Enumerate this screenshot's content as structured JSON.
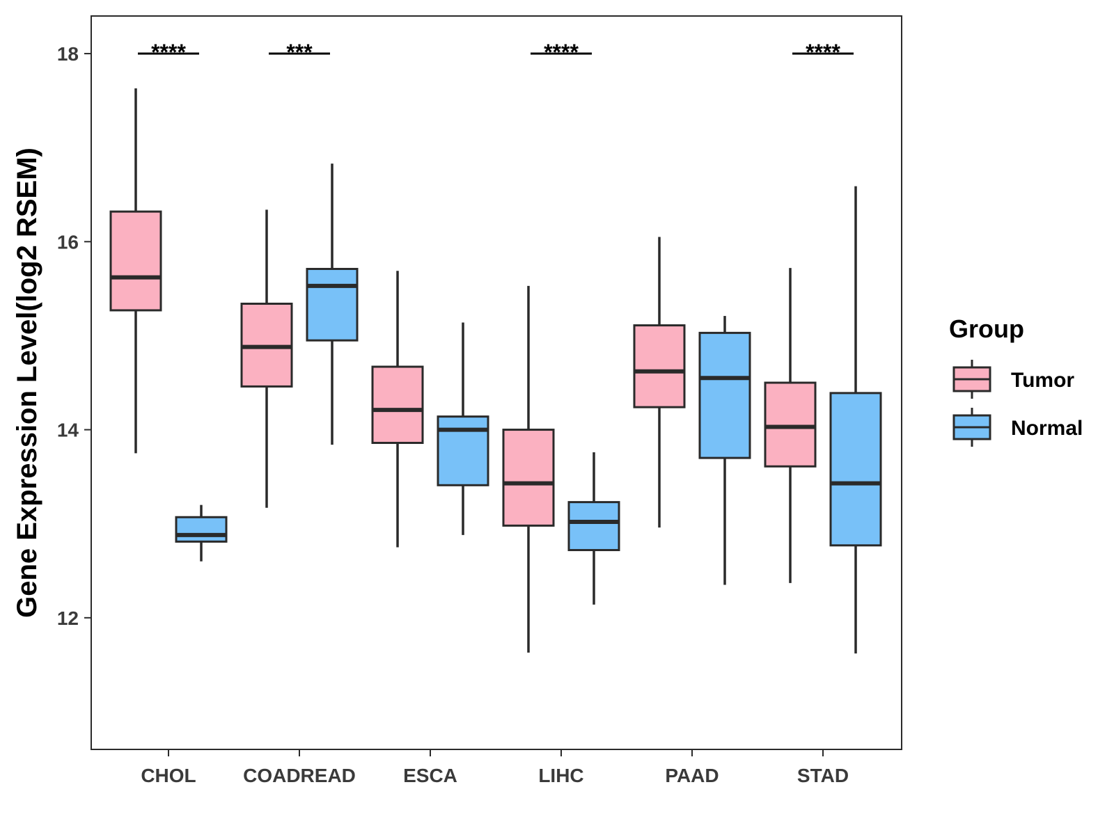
{
  "chart_data": {
    "type": "box",
    "ylabel": "Gene Expression Level(log2 RSEM)",
    "xlabel": "",
    "ylim": [
      10.6,
      18.4
    ],
    "yticks": [
      12,
      14,
      16,
      18
    ],
    "categories": [
      "CHOL",
      "COADREAD",
      "ESCA",
      "LIHC",
      "PAAD",
      "STAD"
    ],
    "legend": {
      "title": "Group",
      "position": "right",
      "entries": [
        "Tumor",
        "Normal"
      ]
    },
    "colors": {
      "Tumor": "#fbb1c1",
      "Normal": "#78c1f8",
      "outline": "#2a2a2a"
    },
    "grid": false,
    "series": [
      {
        "name": "Tumor",
        "boxes": [
          {
            "category": "CHOL",
            "min": 13.75,
            "q1": 15.27,
            "median": 15.62,
            "q3": 16.32,
            "max": 17.63
          },
          {
            "category": "COADREAD",
            "min": 13.17,
            "q1": 14.46,
            "median": 14.88,
            "q3": 15.34,
            "max": 16.34
          },
          {
            "category": "ESCA",
            "min": 12.75,
            "q1": 13.86,
            "median": 14.21,
            "q3": 14.67,
            "max": 15.69
          },
          {
            "category": "LIHC",
            "min": 11.63,
            "q1": 12.98,
            "median": 13.43,
            "q3": 14.0,
            "max": 15.53
          },
          {
            "category": "PAAD",
            "min": 12.96,
            "q1": 14.24,
            "median": 14.62,
            "q3": 15.11,
            "max": 16.05
          },
          {
            "category": "STAD",
            "min": 12.37,
            "q1": 13.61,
            "median": 14.03,
            "q3": 14.5,
            "max": 15.72
          }
        ]
      },
      {
        "name": "Normal",
        "boxes": [
          {
            "category": "CHOL",
            "min": 12.6,
            "q1": 12.81,
            "median": 12.88,
            "q3": 13.07,
            "max": 13.2
          },
          {
            "category": "COADREAD",
            "min": 13.84,
            "q1": 14.95,
            "median": 15.53,
            "q3": 15.71,
            "max": 16.83
          },
          {
            "category": "ESCA",
            "min": 12.88,
            "q1": 13.41,
            "median": 14.0,
            "q3": 14.14,
            "max": 15.14
          },
          {
            "category": "LIHC",
            "min": 12.14,
            "q1": 12.72,
            "median": 13.02,
            "q3": 13.23,
            "max": 13.76
          },
          {
            "category": "PAAD",
            "min": 12.35,
            "q1": 13.7,
            "median": 14.55,
            "q3": 15.03,
            "max": 15.21
          },
          {
            "category": "STAD",
            "min": 11.62,
            "q1": 12.77,
            "median": 13.43,
            "q3": 14.39,
            "max": 16.59
          }
        ]
      }
    ],
    "annotations": [
      {
        "category": "CHOL",
        "label": "****",
        "y": 18.0
      },
      {
        "category": "COADREAD",
        "label": "***",
        "y": 18.0
      },
      {
        "category": "LIHC",
        "label": "****",
        "y": 18.0
      },
      {
        "category": "STAD",
        "label": "****",
        "y": 18.0
      }
    ]
  }
}
